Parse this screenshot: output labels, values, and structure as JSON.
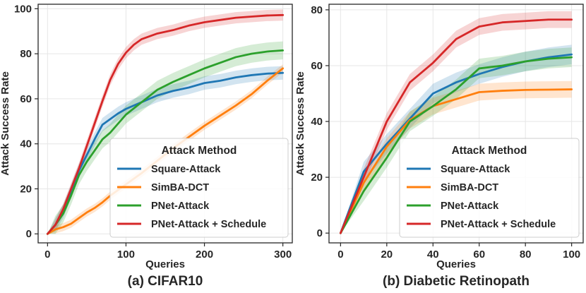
{
  "chart_data": [
    {
      "type": "line",
      "caption": "(a) CIFAR10",
      "xlabel": "Queries",
      "ylabel": "Attack Success Rate",
      "xlim": [
        -12,
        312
      ],
      "ylim": [
        -4,
        102
      ],
      "xticks": [
        0,
        100,
        200,
        300
      ],
      "yticks": [
        0,
        20,
        40,
        60,
        80,
        100
      ],
      "grid": true,
      "legend": {
        "title": "Attack Method",
        "placement": "lower-right"
      },
      "series": [
        {
          "name": "Square-Attack",
          "color": "#1f77b4",
          "x": [
            0,
            10,
            20,
            30,
            40,
            50,
            60,
            70,
            80,
            90,
            100,
            120,
            140,
            160,
            180,
            200,
            220,
            240,
            260,
            280,
            300
          ],
          "y": [
            0,
            4,
            10,
            19,
            28,
            35,
            42,
            48.5,
            51,
            53.5,
            55.5,
            58.5,
            61.5,
            63.5,
            65,
            67,
            68,
            69.5,
            70.5,
            71.2,
            71.5
          ],
          "band": 3
        },
        {
          "name": "SimBA-DCT",
          "color": "#ff7f0e",
          "x": [
            0,
            10,
            20,
            30,
            40,
            50,
            60,
            70,
            80,
            90,
            100,
            120,
            140,
            160,
            180,
            200,
            220,
            240,
            260,
            280,
            300
          ],
          "y": [
            0,
            2,
            3,
            4.5,
            7,
            9.5,
            11.5,
            14,
            17,
            19.5,
            22,
            27,
            32.5,
            38,
            43,
            48,
            52.5,
            57,
            62,
            68,
            73.5
          ],
          "band": 1.8
        },
        {
          "name": "PNet-Attack",
          "color": "#2ca02c",
          "x": [
            0,
            10,
            20,
            30,
            40,
            50,
            60,
            70,
            80,
            90,
            100,
            120,
            140,
            160,
            180,
            200,
            220,
            240,
            260,
            280,
            300
          ],
          "y": [
            0,
            4,
            9,
            17,
            26,
            32,
            37,
            42,
            45,
            49,
            53,
            58.5,
            64,
            67.5,
            70.5,
            73.5,
            76,
            78.5,
            80,
            81,
            81.5
          ],
          "band": 4
        },
        {
          "name": "PNet-Attack + Schedule",
          "color": "#d62728",
          "x": [
            0,
            10,
            20,
            30,
            40,
            50,
            60,
            70,
            80,
            90,
            100,
            110,
            120,
            140,
            160,
            180,
            200,
            220,
            240,
            260,
            280,
            300
          ],
          "y": [
            0,
            4,
            11,
            20,
            29,
            39,
            49,
            59,
            68.5,
            75.5,
            80.5,
            84,
            86.5,
            89,
            90.5,
            92.5,
            94,
            95,
            96,
            96.5,
            97,
            97.2
          ],
          "band": 2.5
        }
      ]
    },
    {
      "type": "line",
      "caption": "(b) Diabetic Retinopath",
      "xlabel": "Queries",
      "ylabel": "Attack Success Rate",
      "xlim": [
        -5,
        105
      ],
      "ylim": [
        -3.5,
        82
      ],
      "xticks": [
        0,
        20,
        40,
        60,
        80,
        100
      ],
      "yticks": [
        0,
        20,
        40,
        60,
        80
      ],
      "grid": true,
      "legend": {
        "title": "Attack Method",
        "placement": "lower-right"
      },
      "series": [
        {
          "name": "Square-Attack",
          "color": "#1f77b4",
          "x": [
            0,
            10,
            20,
            30,
            40,
            50,
            60,
            70,
            80,
            90,
            100
          ],
          "y": [
            0,
            22,
            32,
            41,
            50,
            54,
            57,
            59.5,
            61.5,
            63,
            64
          ],
          "band": 3.5
        },
        {
          "name": "SimBA-DCT",
          "color": "#ff7f0e",
          "x": [
            0,
            10,
            20,
            30,
            40,
            50,
            60,
            70,
            80,
            90,
            100
          ],
          "y": [
            0,
            18,
            31,
            40.5,
            45.5,
            48,
            50.5,
            51,
            51.3,
            51.4,
            51.5
          ],
          "band": 3
        },
        {
          "name": "PNet-Attack",
          "color": "#2ca02c",
          "x": [
            0,
            10,
            20,
            30,
            40,
            50,
            60,
            70,
            80,
            90,
            100
          ],
          "y": [
            0,
            15,
            27,
            40,
            45.5,
            51.5,
            59,
            60,
            61.5,
            62.5,
            63
          ],
          "band": 3.5
        },
        {
          "name": "PNet-Attack + Schedule",
          "color": "#d62728",
          "x": [
            0,
            10,
            20,
            30,
            40,
            50,
            60,
            70,
            80,
            90,
            100
          ],
          "y": [
            0,
            20,
            40,
            54,
            61,
            69.5,
            74,
            75.5,
            76,
            76.5,
            76.5
          ],
          "band": 3
        }
      ]
    }
  ]
}
